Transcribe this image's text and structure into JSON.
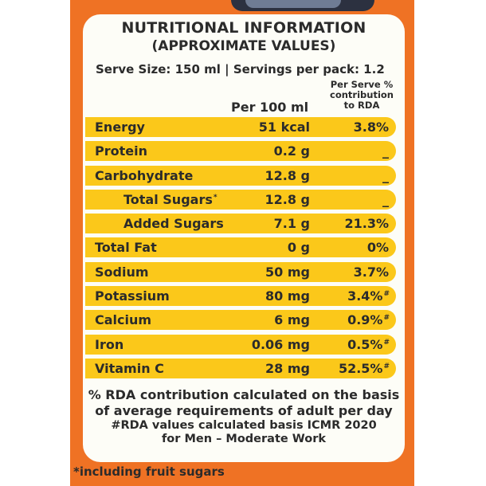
{
  "panel": {
    "title": "NUTRITIONAL INFORMATION",
    "subtitle": "(APPROXIMATE VALUES)",
    "serve_line": "Serve Size: 150 ml | Servings per pack: 1.2",
    "col_per100": "Per 100 ml",
    "col_rda_1": "Per Serve %",
    "col_rda_2": "contribution",
    "col_rda_3": "to RDA"
  },
  "rows": [
    {
      "name": "Energy",
      "value": "51 kcal",
      "rda": "3.8%",
      "mark": ""
    },
    {
      "name": "Protein",
      "value": "0.2 g",
      "rda": "_",
      "mark": ""
    },
    {
      "name": "Carbohydrate",
      "value": "12.8 g",
      "rda": "_",
      "mark": ""
    },
    {
      "name": "Total Sugars",
      "name_mark": "*",
      "value": "12.8 g",
      "rda": "_",
      "mark": ""
    },
    {
      "name": "Added Sugars",
      "value": "7.1 g",
      "rda": "21.3%",
      "mark": ""
    },
    {
      "name": "Total Fat",
      "value": "0 g",
      "rda": "0%",
      "mark": ""
    },
    {
      "name": "Sodium",
      "value": "50 mg",
      "rda": "3.7%",
      "mark": ""
    },
    {
      "name": "Potassium",
      "value": "80 mg",
      "rda": "3.4%",
      "mark": "#"
    },
    {
      "name": "Calcium",
      "value": "6 mg",
      "rda": "0.9%",
      "mark": "#"
    },
    {
      "name": "Iron",
      "value": "0.06 mg",
      "rda": "0.5%",
      "mark": "#"
    },
    {
      "name": "Vitamin C",
      "value": "28 mg",
      "rda": "52.5%",
      "mark": "#"
    }
  ],
  "footnote": {
    "line1": "% RDA contribution calculated on the basis",
    "line2": "of average requirements of adult per day",
    "line3": "#RDA values calculated basis ICMR 2020",
    "line4": "for Men – Moderate Work"
  },
  "bottom_note": "*including fruit sugars",
  "colors": {
    "orange": "#ef7224",
    "yellow": "#fbc81a",
    "card": "#fdfdf7",
    "text": "#2b2b2b"
  }
}
